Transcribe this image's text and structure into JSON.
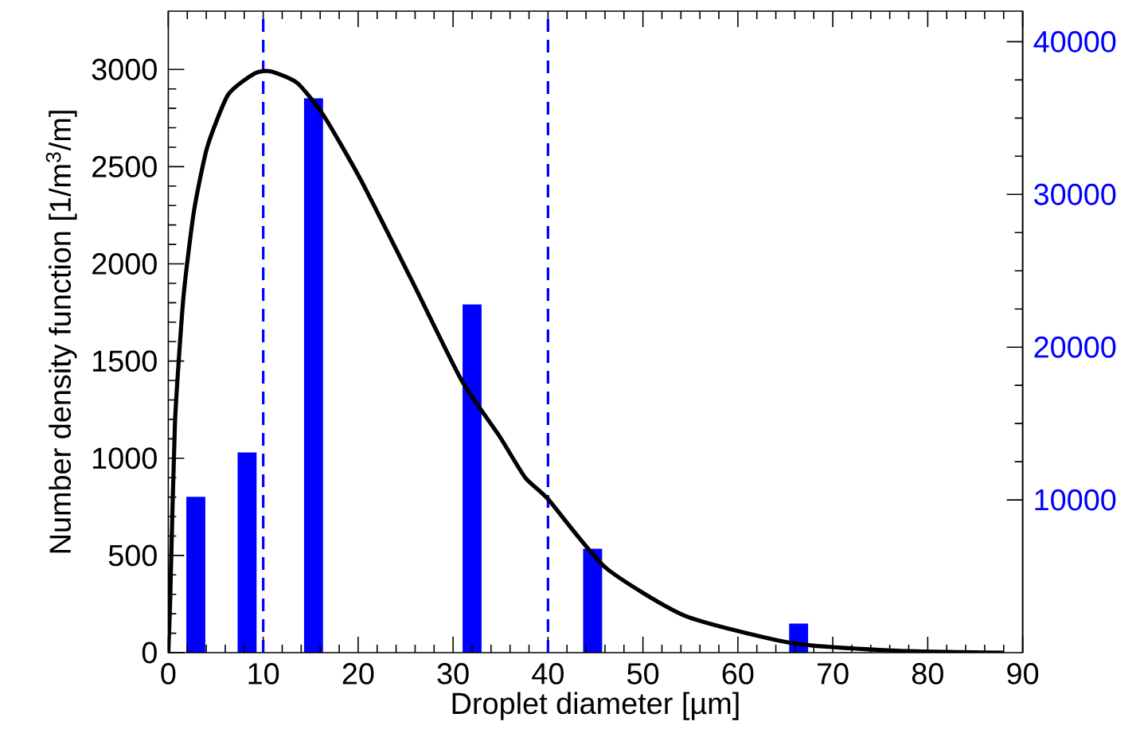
{
  "chart_data": {
    "type": "line",
    "xlabel": "Droplet diameter [µm]",
    "ylabel": "Number density function [1/m$^{3}$/m]",
    "xlim": [
      0,
      90
    ],
    "xticks": [
      0,
      10,
      20,
      30,
      40,
      50,
      60,
      70,
      80,
      90
    ],
    "ylim": [
      0,
      3300
    ],
    "yticks": [
      0,
      500,
      1000,
      1500,
      2000,
      2500,
      3000
    ],
    "y2lim": [
      0,
      42000
    ],
    "y2ticks": [
      10000,
      20000,
      30000,
      40000
    ],
    "series": [
      {
        "color": "#000000",
        "x": [
          0,
          0.2,
          0.7,
          1.6,
          2.7,
          4.1,
          6.3,
          9.1,
          10.8,
          13.6,
          16.4,
          20.3,
          25.9,
          30.9,
          34.8,
          37.6,
          40,
          46,
          54.4,
          65.6,
          76.8,
          88
        ],
        "values": [
          0,
          270,
          1180,
          1830,
          2270,
          2600,
          2870,
          2980,
          2990,
          2930,
          2760,
          2430,
          1890,
          1400,
          1120,
          900,
          790,
          440,
          190,
          50,
          10,
          0
        ]
      },
      {
        "type": "bar",
        "axis": "y2",
        "color": "#0000ff",
        "x": [
          2.9,
          8.3,
          15.3,
          32,
          44.7,
          66.4
        ],
        "values": [
          10200,
          13100,
          36300,
          22800,
          6800,
          1900
        ]
      }
    ],
    "ref_lines": [
      {
        "axis": "x",
        "value": 10,
        "color": "#0000ff",
        "line_style": "dashed"
      },
      {
        "axis": "x",
        "value": 40,
        "color": "#0000ff",
        "line_style": "dashed"
      }
    ]
  }
}
